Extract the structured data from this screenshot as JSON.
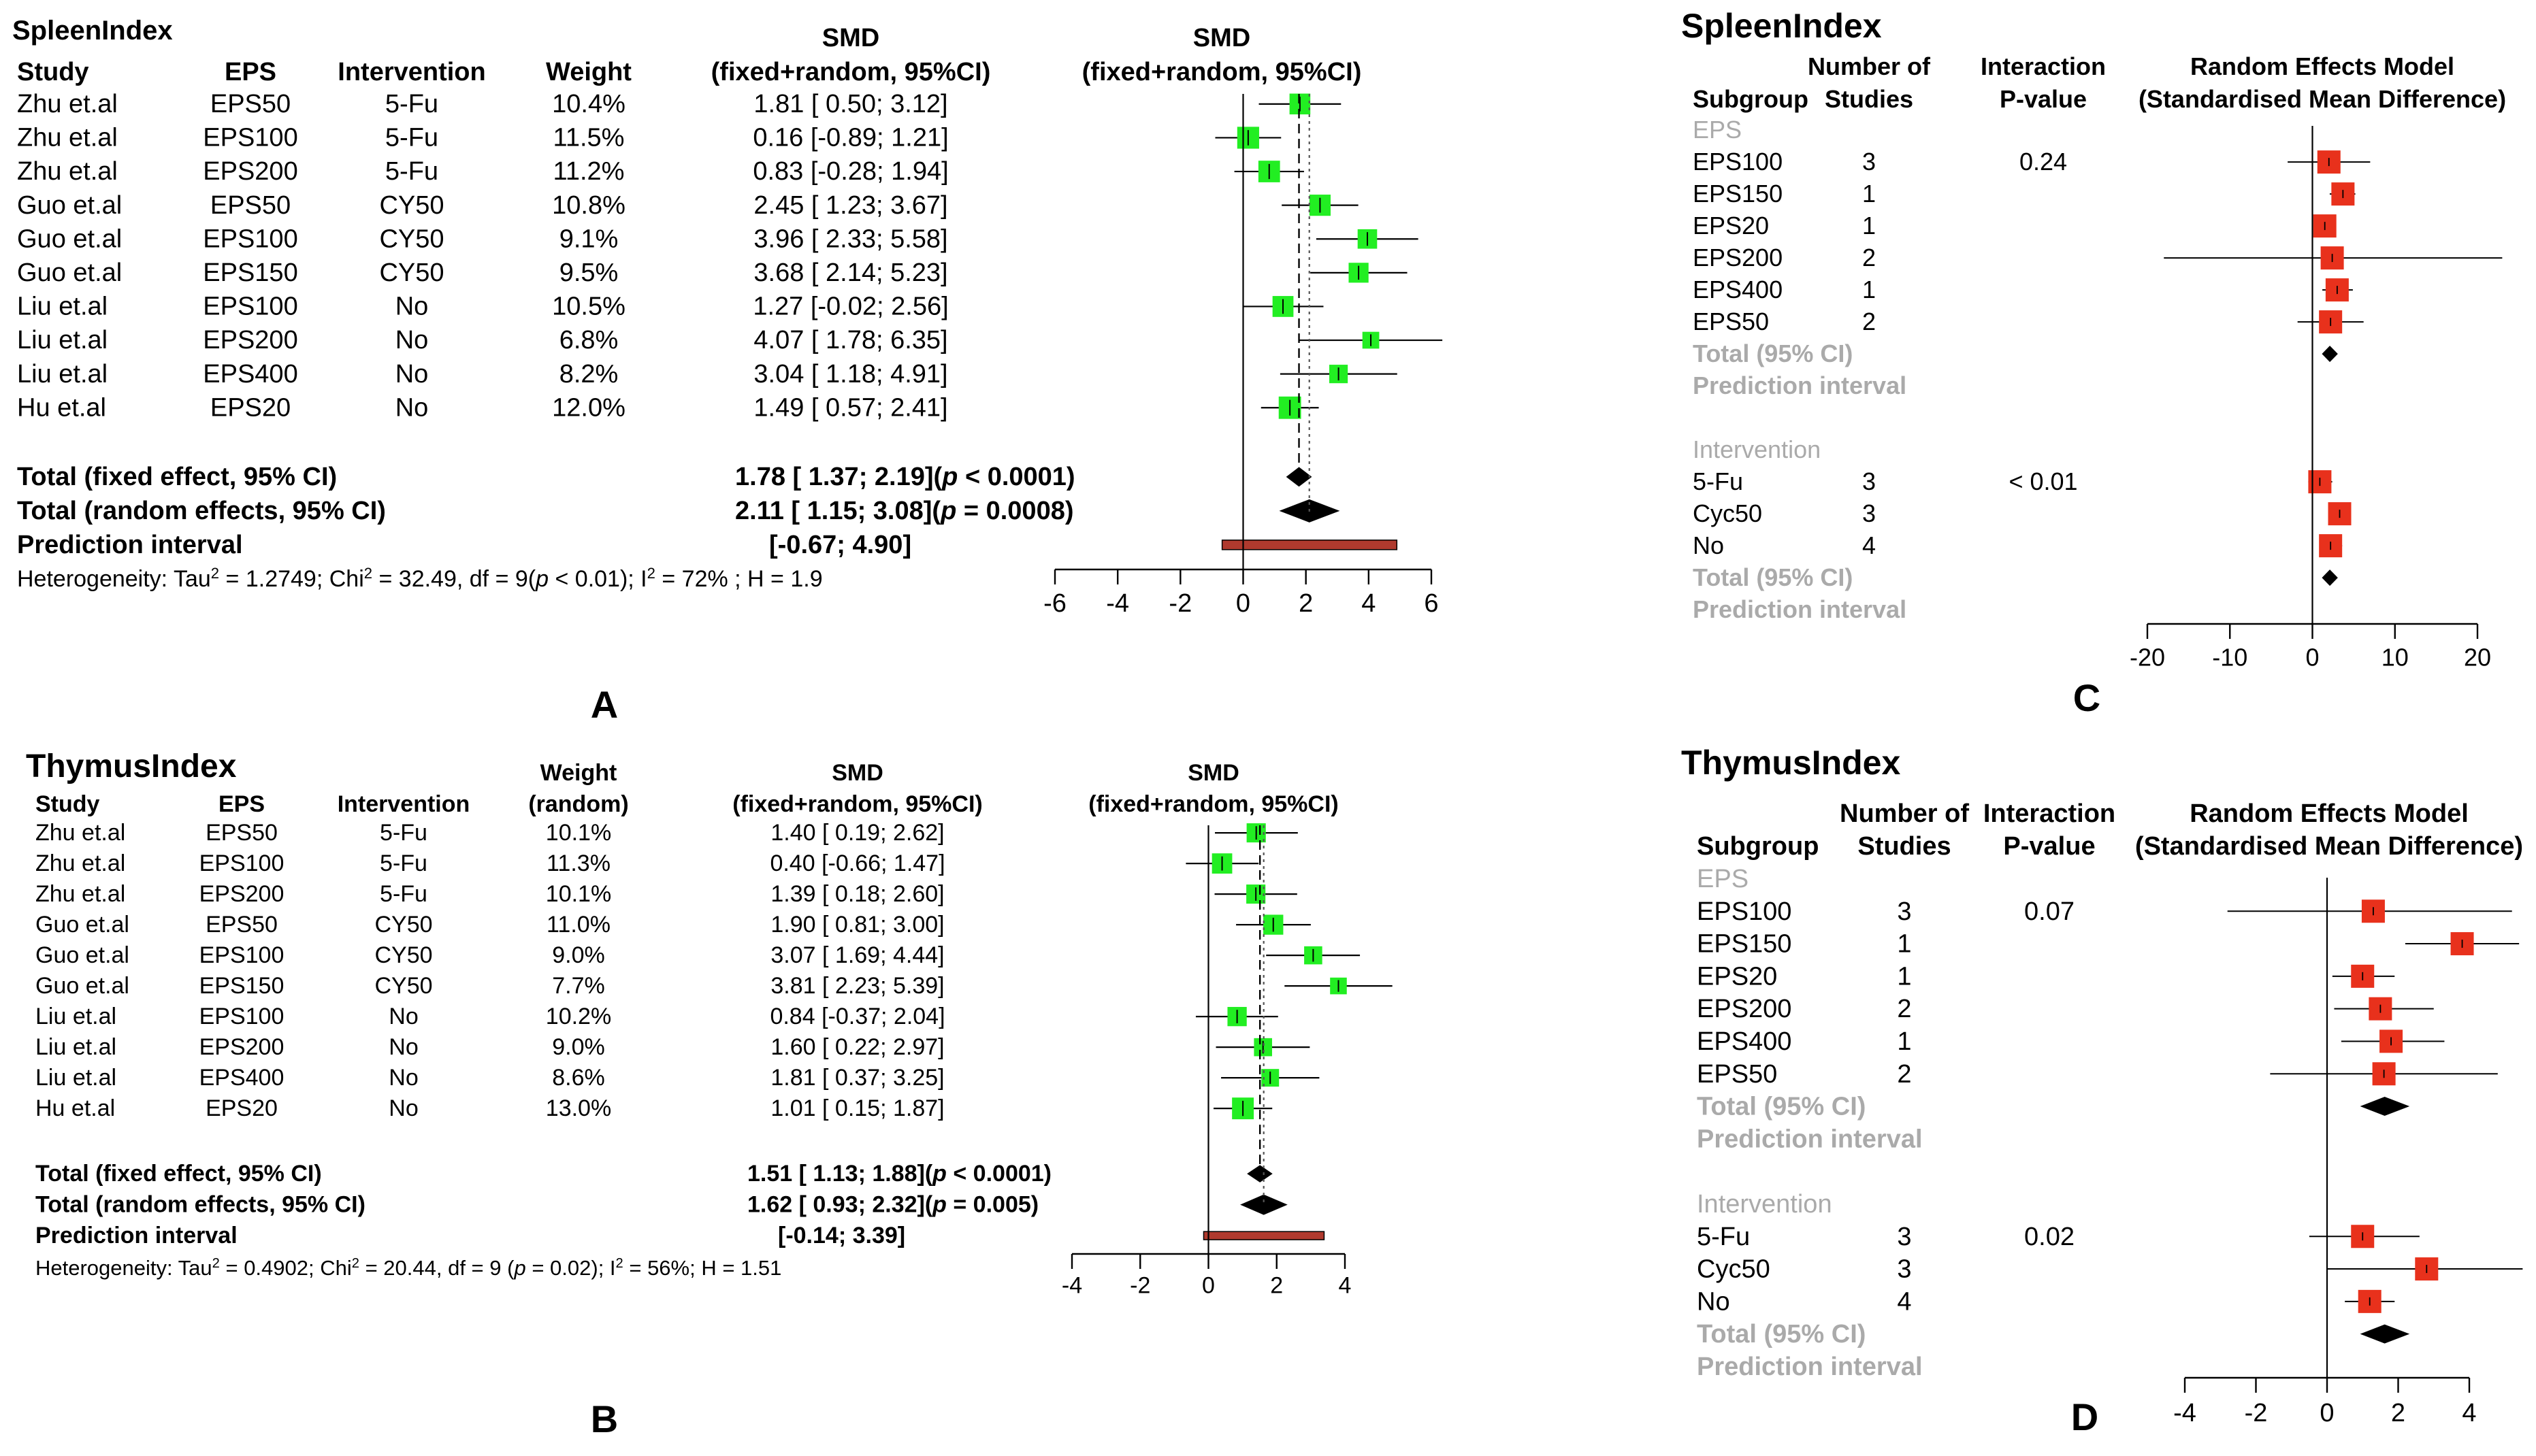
{
  "panels": {
    "A": {
      "label": "A",
      "title": "SpleenIndex",
      "headers": {
        "study": "Study",
        "eps": "EPS",
        "intervention": "Intervention",
        "weight_lines": [
          "",
          "Weight"
        ],
        "smd_lines": [
          "SMD",
          "(fixed+random, 95%CI)"
        ],
        "plot_lines": [
          "SMD",
          "(fixed+random, 95%CI)"
        ]
      },
      "rows": [
        {
          "study": "Zhu et.al",
          "eps": "EPS50",
          "intervention": "5-Fu",
          "weight": "10.4%",
          "ci": "1.81 [ 0.50; 3.12]",
          "smd": 1.81,
          "lower": 0.5,
          "upper": 3.12,
          "w": 10.4
        },
        {
          "study": "Zhu et.al",
          "eps": "EPS100",
          "intervention": "5-Fu",
          "weight": "11.5%",
          "ci": "0.16 [-0.89; 1.21]",
          "smd": 0.16,
          "lower": -0.89,
          "upper": 1.21,
          "w": 11.5
        },
        {
          "study": "Zhu et.al",
          "eps": "EPS200",
          "intervention": "5-Fu",
          "weight": "11.2%",
          "ci": "0.83 [-0.28; 1.94]",
          "smd": 0.83,
          "lower": -0.28,
          "upper": 1.94,
          "w": 11.2
        },
        {
          "study": "Guo et.al",
          "eps": "EPS50",
          "intervention": "CY50",
          "weight": "10.8%",
          "ci": "2.45 [ 1.23; 3.67]",
          "smd": 2.45,
          "lower": 1.23,
          "upper": 3.67,
          "w": 10.8
        },
        {
          "study": "Guo et.al",
          "eps": "EPS100",
          "intervention": "CY50",
          "weight": "9.1%",
          "ci": "3.96 [ 2.33; 5.58]",
          "smd": 3.96,
          "lower": 2.33,
          "upper": 5.58,
          "w": 9.1
        },
        {
          "study": "Guo et.al",
          "eps": "EPS150",
          "intervention": "CY50",
          "weight": "9.5%",
          "ci": "3.68 [ 2.14; 5.23]",
          "smd": 3.68,
          "lower": 2.14,
          "upper": 5.23,
          "w": 9.5
        },
        {
          "study": "Liu et.al",
          "eps": "EPS100",
          "intervention": "No",
          "weight": "10.5%",
          "ci": "1.27 [-0.02; 2.56]",
          "smd": 1.27,
          "lower": -0.02,
          "upper": 2.56,
          "w": 10.5
        },
        {
          "study": "Liu et.al",
          "eps": "EPS200",
          "intervention": "No",
          "weight": "6.8%",
          "ci": "4.07 [ 1.78; 6.35]",
          "smd": 4.07,
          "lower": 1.78,
          "upper": 6.35,
          "w": 6.8
        },
        {
          "study": "Liu et.al",
          "eps": "EPS400",
          "intervention": "No",
          "weight": "8.2%",
          "ci": "3.04 [ 1.18; 4.91]",
          "smd": 3.04,
          "lower": 1.18,
          "upper": 4.91,
          "w": 8.2
        },
        {
          "study": "Hu et.al",
          "eps": "EPS20",
          "intervention": "No",
          "weight": "12.0%",
          "ci": "1.49 [ 0.57; 2.41]",
          "smd": 1.49,
          "lower": 0.57,
          "upper": 2.41,
          "w": 12.0
        }
      ],
      "totals": [
        {
          "label": "Total (fixed effect, 95% CI)",
          "ci": "1.78 [ 1.37; 2.19]",
          "p_pre": "(",
          "p_italic": "p",
          "p_post": " < 0.0001)",
          "est": 1.78,
          "lower": 1.37,
          "upper": 2.19
        },
        {
          "label": "Total (random effects, 95% CI)",
          "ci": "2.11 [ 1.15; 3.08]",
          "p_pre": "(",
          "p_italic": "p",
          "p_post": " = 0.0008)",
          "est": 2.11,
          "lower": 1.15,
          "upper": 3.08
        }
      ],
      "prediction": {
        "label": "Prediction interval",
        "ci": "[-0.67; 4.90]",
        "lower": -0.67,
        "upper": 4.9
      },
      "heterogeneity": {
        "a": "Heterogeneity: Tau",
        "a_sup": "2",
        "b": " = 1.2749; Chi",
        "b_sup": "2",
        "c": " = 32.49, df = 9(",
        "c_italic": "p",
        "d": " < 0.01); I",
        "d_sup": "2",
        "e": " = 72% ; H = 1.9"
      },
      "axis": {
        "min": -6,
        "max": 6,
        "ticks": [
          -6,
          -4,
          -2,
          0,
          2,
          4,
          6
        ]
      },
      "colors": {
        "square": "#22ee22",
        "prediction": "#b03a2e"
      }
    },
    "B": {
      "label": "B",
      "title": "ThymusIndex",
      "headers": {
        "study": "Study",
        "eps": "EPS",
        "intervention": "Intervention",
        "weight_lines": [
          "Weight",
          "(random)"
        ],
        "smd_lines": [
          "SMD",
          "(fixed+random, 95%CI)"
        ],
        "plot_lines": [
          "SMD",
          "(fixed+random, 95%CI)"
        ]
      },
      "rows": [
        {
          "study": "Zhu et.al",
          "eps": "EPS50",
          "intervention": "5-Fu",
          "weight": "10.1%",
          "ci": "1.40 [ 0.19; 2.62]",
          "smd": 1.4,
          "lower": 0.19,
          "upper": 2.62,
          "w": 10.1
        },
        {
          "study": "Zhu et.al",
          "eps": "EPS100",
          "intervention": "5-Fu",
          "weight": "11.3%",
          "ci": "0.40 [-0.66; 1.47]",
          "smd": 0.4,
          "lower": -0.66,
          "upper": 1.47,
          "w": 11.3
        },
        {
          "study": "Zhu et.al",
          "eps": "EPS200",
          "intervention": "5-Fu",
          "weight": "10.1%",
          "ci": "1.39 [ 0.18; 2.60]",
          "smd": 1.39,
          "lower": 0.18,
          "upper": 2.6,
          "w": 10.1
        },
        {
          "study": "Guo et.al",
          "eps": "EPS50",
          "intervention": "CY50",
          "weight": "11.0%",
          "ci": "1.90 [ 0.81; 3.00]",
          "smd": 1.9,
          "lower": 0.81,
          "upper": 3.0,
          "w": 11.0
        },
        {
          "study": "Guo et.al",
          "eps": "EPS100",
          "intervention": "CY50",
          "weight": "9.0%",
          "ci": "3.07 [ 1.69; 4.44]",
          "smd": 3.07,
          "lower": 1.69,
          "upper": 4.44,
          "w": 9.0
        },
        {
          "study": "Guo et.al",
          "eps": "EPS150",
          "intervention": "CY50",
          "weight": "7.7%",
          "ci": "3.81 [ 2.23; 5.39]",
          "smd": 3.81,
          "lower": 2.23,
          "upper": 5.39,
          "w": 7.7
        },
        {
          "study": "Liu et.al",
          "eps": "EPS100",
          "intervention": "No",
          "weight": "10.2%",
          "ci": "0.84 [-0.37; 2.04]",
          "smd": 0.84,
          "lower": -0.37,
          "upper": 2.04,
          "w": 10.2
        },
        {
          "study": "Liu et.al",
          "eps": "EPS200",
          "intervention": "No",
          "weight": "9.0%",
          "ci": "1.60 [ 0.22; 2.97]",
          "smd": 1.6,
          "lower": 0.22,
          "upper": 2.97,
          "w": 9.0
        },
        {
          "study": "Liu et.al",
          "eps": "EPS400",
          "intervention": "No",
          "weight": "8.6%",
          "ci": "1.81 [ 0.37; 3.25]",
          "smd": 1.81,
          "lower": 0.37,
          "upper": 3.25,
          "w": 8.6
        },
        {
          "study": "Hu et.al",
          "eps": "EPS20",
          "intervention": "No",
          "weight": "13.0%",
          "ci": "1.01 [ 0.15; 1.87]",
          "smd": 1.01,
          "lower": 0.15,
          "upper": 1.87,
          "w": 13.0
        }
      ],
      "totals": [
        {
          "label": "Total (fixed effect, 95% CI)",
          "ci": "1.51 [ 1.13; 1.88]",
          "p_pre": "(",
          "p_italic": "p",
          "p_post": " < 0.0001)",
          "est": 1.51,
          "lower": 1.13,
          "upper": 1.88
        },
        {
          "label": "Total (random effects, 95% CI)",
          "ci": "1.62 [ 0.93; 2.32]",
          "p_pre": "(",
          "p_italic": "p",
          "p_post": " = 0.005)",
          "est": 1.62,
          "lower": 0.93,
          "upper": 2.32
        }
      ],
      "prediction": {
        "label": "Prediction interval",
        "ci": "[-0.14; 3.39]",
        "lower": -0.14,
        "upper": 3.39
      },
      "heterogeneity": {
        "a": "Heterogeneity: Tau",
        "a_sup": "2",
        "b": " = 0.4902; Chi",
        "b_sup": "2",
        "c": " = 20.44, df = 9 (",
        "c_italic": "p",
        "d": " = 0.02); I",
        "d_sup": "2",
        "e": " = 56%; H = 1.51"
      },
      "axis": {
        "min": -4,
        "max": 4,
        "ticks": [
          -4,
          -2,
          0,
          2,
          4
        ]
      },
      "colors": {
        "square": "#22ee22",
        "prediction": "#b03a2e"
      }
    },
    "C": {
      "label": "C",
      "title": "SpleenIndex",
      "headers": {
        "subgroup": "Subgroup",
        "studies_lines": [
          "Number of",
          "Studies"
        ],
        "interaction_lines": [
          "Interaction",
          "P-value"
        ],
        "model_lines": [
          "Random Effects Model",
          "(Standardised Mean Difference)"
        ]
      },
      "rows": [
        {
          "kind": "group",
          "label": "EPS"
        },
        {
          "kind": "item",
          "label": "EPS100",
          "n": "3",
          "p": "0.24",
          "est": 2.0,
          "lower": -3.0,
          "upper": 7.0
        },
        {
          "kind": "item",
          "label": "EPS150",
          "n": "1",
          "p": "",
          "est": 3.7,
          "lower": 2.1,
          "upper": 5.2
        },
        {
          "kind": "item",
          "label": "EPS20",
          "n": "1",
          "p": "",
          "est": 1.5,
          "lower": 0.6,
          "upper": 2.4
        },
        {
          "kind": "item",
          "label": "EPS200",
          "n": "2",
          "p": "",
          "est": 2.4,
          "lower": -18.0,
          "upper": 23.0
        },
        {
          "kind": "item",
          "label": "EPS400",
          "n": "1",
          "p": "",
          "est": 3.0,
          "lower": 1.2,
          "upper": 4.9
        },
        {
          "kind": "item",
          "label": "EPS50",
          "n": "2",
          "p": "",
          "est": 2.2,
          "lower": -1.8,
          "upper": 6.2
        },
        {
          "kind": "total",
          "label": "Total (95% CI)",
          "est": 2.11,
          "lower": 1.15,
          "upper": 3.08
        },
        {
          "kind": "pred",
          "label": "Prediction interval"
        },
        {
          "kind": "blank"
        },
        {
          "kind": "group",
          "label": "Intervention"
        },
        {
          "kind": "item",
          "label": "5-Fu",
          "n": "3",
          "p": "< 0.01",
          "est": 0.9,
          "lower": -0.5,
          "upper": 2.4
        },
        {
          "kind": "item",
          "label": "Cyc50",
          "n": "3",
          "p": "",
          "est": 3.3,
          "lower": 2.0,
          "upper": 4.6
        },
        {
          "kind": "item",
          "label": "No",
          "n": "4",
          "p": "",
          "est": 2.2,
          "lower": 0.9,
          "upper": 3.6
        },
        {
          "kind": "total",
          "label": "Total (95% CI)",
          "est": 2.11,
          "lower": 1.15,
          "upper": 3.08
        },
        {
          "kind": "pred",
          "label": "Prediction interval"
        }
      ],
      "axis": {
        "min": -20,
        "max": 20,
        "ticks": [
          -20,
          -10,
          0,
          10,
          20
        ]
      },
      "colors": {
        "square": "#e8311c",
        "grey": "#aaaaaa"
      }
    },
    "D": {
      "label": "D",
      "title": "ThymusIndex",
      "headers": {
        "subgroup": "Subgroup",
        "studies_lines": [
          "Number of",
          "Studies"
        ],
        "interaction_lines": [
          "Interaction",
          "P-value"
        ],
        "model_lines": [
          "Random Effects Model",
          "(Standardised Mean Difference)"
        ]
      },
      "rows": [
        {
          "kind": "group",
          "label": "EPS"
        },
        {
          "kind": "item",
          "label": "EPS100",
          "n": "3",
          "p": "0.07",
          "est": 1.3,
          "lower": -2.8,
          "upper": 5.2
        },
        {
          "kind": "item",
          "label": "EPS150",
          "n": "1",
          "p": "",
          "est": 3.8,
          "lower": 2.2,
          "upper": 5.4
        },
        {
          "kind": "item",
          "label": "EPS20",
          "n": "1",
          "p": "",
          "est": 1.0,
          "lower": 0.15,
          "upper": 1.9
        },
        {
          "kind": "item",
          "label": "EPS200",
          "n": "2",
          "p": "",
          "est": 1.5,
          "lower": 0.2,
          "upper": 3.0
        },
        {
          "kind": "item",
          "label": "EPS400",
          "n": "1",
          "p": "",
          "est": 1.8,
          "lower": 0.4,
          "upper": 3.3
        },
        {
          "kind": "item",
          "label": "EPS50",
          "n": "2",
          "p": "",
          "est": 1.6,
          "lower": -1.6,
          "upper": 4.8
        },
        {
          "kind": "total",
          "label": "Total (95% CI)",
          "est": 1.62,
          "lower": 0.93,
          "upper": 2.32
        },
        {
          "kind": "pred",
          "label": "Prediction interval"
        },
        {
          "kind": "blank"
        },
        {
          "kind": "group",
          "label": "Intervention"
        },
        {
          "kind": "item",
          "label": "5-Fu",
          "n": "3",
          "p": "0.02",
          "est": 1.0,
          "lower": -0.5,
          "upper": 2.6
        },
        {
          "kind": "item",
          "label": "Cyc50",
          "n": "3",
          "p": "",
          "est": 2.8,
          "lower": 0.0,
          "upper": 5.5
        },
        {
          "kind": "item",
          "label": "No",
          "n": "4",
          "p": "",
          "est": 1.2,
          "lower": 0.5,
          "upper": 1.9
        },
        {
          "kind": "total",
          "label": "Total (95% CI)",
          "est": 1.62,
          "lower": 0.93,
          "upper": 2.32
        },
        {
          "kind": "pred",
          "label": "Prediction interval"
        }
      ],
      "axis": {
        "min": -4,
        "max": 4,
        "ticks": [
          -4,
          -2,
          0,
          2,
          4
        ]
      },
      "colors": {
        "square": "#e8311c",
        "grey": "#aaaaaa"
      }
    }
  },
  "chart_data": [
    {
      "type": "forest",
      "panel": "A",
      "title": "SpleenIndex",
      "xlabel": "SMD (fixed+random, 95%CI)",
      "xlim": [
        -6,
        6
      ],
      "studies": [
        "Zhu EPS50",
        "Zhu EPS100",
        "Zhu EPS200",
        "Guo EPS50",
        "Guo EPS100",
        "Guo EPS150",
        "Liu EPS100",
        "Liu EPS200",
        "Liu EPS400",
        "Hu EPS20"
      ],
      "smd": [
        1.81,
        0.16,
        0.83,
        2.45,
        3.96,
        3.68,
        1.27,
        4.07,
        3.04,
        1.49
      ],
      "lower": [
        0.5,
        -0.89,
        -0.28,
        1.23,
        2.33,
        2.14,
        -0.02,
        1.78,
        1.18,
        0.57
      ],
      "upper": [
        3.12,
        1.21,
        1.94,
        3.67,
        5.58,
        5.23,
        2.56,
        6.35,
        4.91,
        2.41
      ],
      "weight": [
        10.4,
        11.5,
        11.2,
        10.8,
        9.1,
        9.5,
        10.5,
        6.8,
        8.2,
        12.0
      ],
      "fixed": [
        1.78,
        1.37,
        2.19
      ],
      "random": [
        2.11,
        1.15,
        3.08
      ],
      "prediction": [
        -0.67,
        4.9
      ]
    },
    {
      "type": "forest",
      "panel": "B",
      "title": "ThymusIndex",
      "xlabel": "SMD (fixed+random, 95%CI)",
      "xlim": [
        -4,
        4
      ],
      "studies": [
        "Zhu EPS50",
        "Zhu EPS100",
        "Zhu EPS200",
        "Guo EPS50",
        "Guo EPS100",
        "Guo EPS150",
        "Liu EPS100",
        "Liu EPS200",
        "Liu EPS400",
        "Hu EPS20"
      ],
      "smd": [
        1.4,
        0.4,
        1.39,
        1.9,
        3.07,
        3.81,
        0.84,
        1.6,
        1.81,
        1.01
      ],
      "lower": [
        0.19,
        -0.66,
        0.18,
        0.81,
        1.69,
        2.23,
        -0.37,
        0.22,
        0.37,
        0.15
      ],
      "upper": [
        2.62,
        1.47,
        2.6,
        3.0,
        4.44,
        5.39,
        2.04,
        2.97,
        3.25,
        1.87
      ],
      "weight": [
        10.1,
        11.3,
        10.1,
        11.0,
        9.0,
        7.7,
        10.2,
        9.0,
        8.6,
        13.0
      ],
      "fixed": [
        1.51,
        1.13,
        1.88
      ],
      "random": [
        1.62,
        0.93,
        2.32
      ],
      "prediction": [
        -0.14,
        3.39
      ]
    },
    {
      "type": "forest-subgroup",
      "panel": "C",
      "title": "SpleenIndex",
      "xlim": [
        -20,
        20
      ],
      "subgroups": {
        "EPS": {
          "EPS100": 3,
          "EPS150": 1,
          "EPS20": 1,
          "EPS200": 2,
          "EPS400": 1,
          "EPS50": 2,
          "interaction_p": "0.24"
        },
        "Intervention": {
          "5-Fu": 3,
          "Cyc50": 3,
          "No": 4,
          "interaction_p": "< 0.01"
        }
      }
    },
    {
      "type": "forest-subgroup",
      "panel": "D",
      "title": "ThymusIndex",
      "xlim": [
        -4,
        4
      ],
      "subgroups": {
        "EPS": {
          "EPS100": 3,
          "EPS150": 1,
          "EPS20": 1,
          "EPS200": 2,
          "EPS400": 1,
          "EPS50": 2,
          "interaction_p": "0.07"
        },
        "Intervention": {
          "5-Fu": 3,
          "Cyc50": 3,
          "No": 4,
          "interaction_p": "0.02"
        }
      }
    }
  ]
}
